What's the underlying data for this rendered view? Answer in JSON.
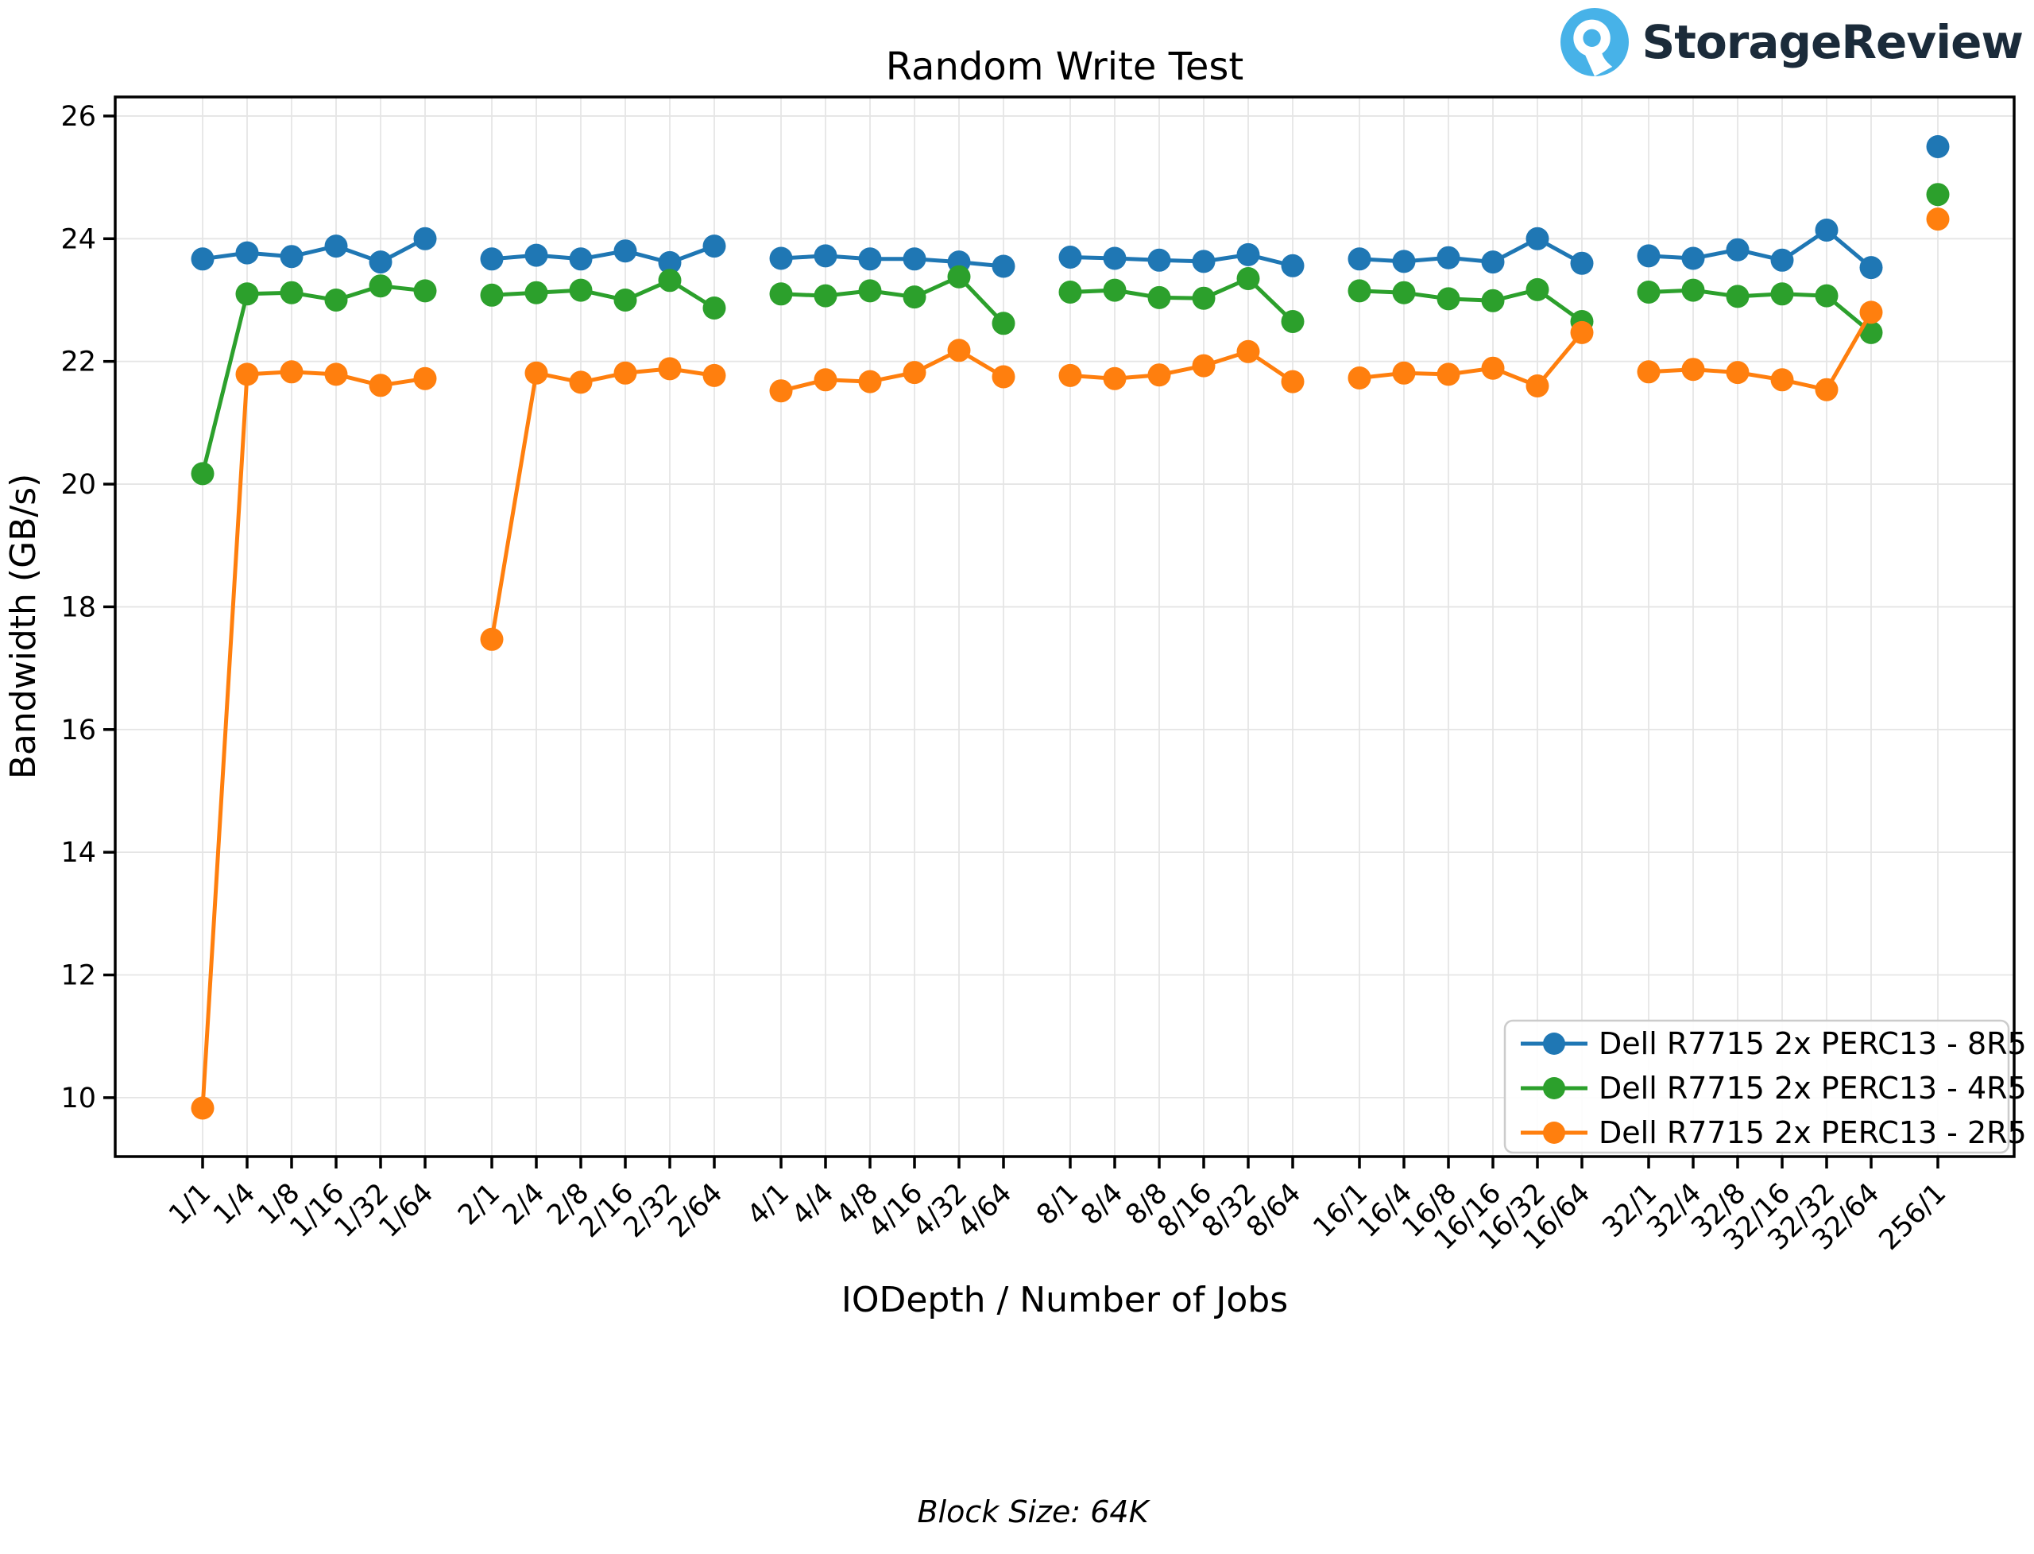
{
  "logo": {
    "text": "StorageReview",
    "icon_color": "#47b2e8",
    "text_color": "#1b2b3a"
  },
  "chart_data": {
    "type": "line",
    "title": "Random Write Test",
    "xlabel": "IODepth / Number of Jobs",
    "ylabel": "Bandwidth (GB/s)",
    "footer": "Block Size: 64K",
    "categories": [
      "1/1",
      "1/4",
      "1/8",
      "1/16",
      "1/32",
      "1/64",
      "2/1",
      "2/4",
      "2/8",
      "2/16",
      "2/32",
      "2/64",
      "4/1",
      "4/4",
      "4/8",
      "4/16",
      "4/32",
      "4/64",
      "8/1",
      "8/4",
      "8/8",
      "8/16",
      "8/32",
      "8/64",
      "16/1",
      "16/4",
      "16/8",
      "16/16",
      "16/32",
      "16/64",
      "32/1",
      "32/4",
      "32/8",
      "32/16",
      "32/32",
      "32/64",
      "256/1"
    ],
    "group_size": 6,
    "group_gap_units": 1.5,
    "ylim": [
      9.04,
      26.31
    ],
    "yticks": [
      10,
      12,
      14,
      16,
      18,
      20,
      22,
      24,
      26
    ],
    "grid": true,
    "legend_position": "lower right",
    "series": [
      {
        "name": "Dell R7715 2x PERC13 - 8R5",
        "color": "#1f77b4",
        "values": [
          23.67,
          23.77,
          23.71,
          23.88,
          23.62,
          24.0,
          23.67,
          23.73,
          23.67,
          23.8,
          23.61,
          23.88,
          23.68,
          23.72,
          23.67,
          23.67,
          23.62,
          23.55,
          23.7,
          23.68,
          23.65,
          23.63,
          23.74,
          23.56,
          23.67,
          23.63,
          23.69,
          23.62,
          24.0,
          23.6,
          23.72,
          23.68,
          23.82,
          23.65,
          24.14,
          23.53,
          25.5
        ]
      },
      {
        "name": "Dell R7715 2x PERC13 - 4R5",
        "color": "#2ca02c",
        "values": [
          20.17,
          23.1,
          23.12,
          23.0,
          23.23,
          23.15,
          23.08,
          23.12,
          23.16,
          23.0,
          23.32,
          22.87,
          23.1,
          23.07,
          23.15,
          23.05,
          23.38,
          22.62,
          23.13,
          23.16,
          23.04,
          23.03,
          23.35,
          22.65,
          23.15,
          23.12,
          23.02,
          22.99,
          23.17,
          22.65,
          23.13,
          23.16,
          23.06,
          23.1,
          23.07,
          22.47,
          24.72
        ]
      },
      {
        "name": "Dell R7715 2x PERC13 - 2R5",
        "color": "#ff7f0e",
        "values": [
          9.83,
          21.79,
          21.83,
          21.79,
          21.61,
          21.72,
          17.47,
          21.81,
          21.66,
          21.81,
          21.88,
          21.77,
          21.52,
          21.7,
          21.67,
          21.82,
          22.18,
          21.75,
          21.77,
          21.72,
          21.78,
          21.93,
          22.16,
          21.67,
          21.73,
          21.81,
          21.79,
          21.89,
          21.6,
          22.47,
          21.83,
          21.87,
          21.82,
          21.7,
          21.54,
          22.8,
          24.32
        ]
      }
    ]
  }
}
